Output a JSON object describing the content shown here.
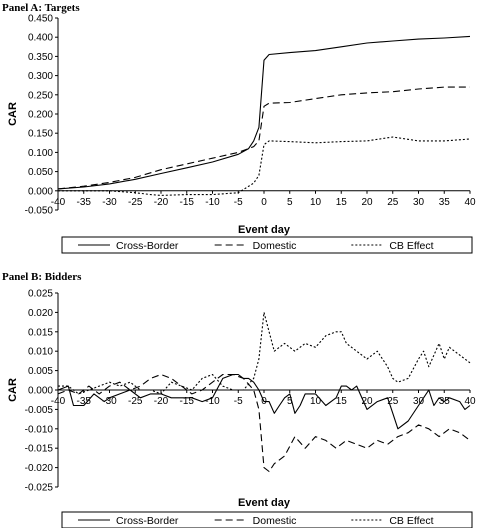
{
  "panels": {
    "a_title": "Panel A: Targets",
    "b_title": "Panel B: Bidders"
  },
  "chart_data": [
    {
      "type": "line",
      "title": "Panel A: Targets",
      "xlabel": "Event day",
      "ylabel": "CAR",
      "xlim": [
        -40,
        40
      ],
      "ylim": [
        -0.05,
        0.45
      ],
      "xticks": [
        "-40",
        "-35",
        "-30",
        "-25",
        "-20",
        "-15",
        "-10",
        "-5",
        "0",
        "5",
        "10",
        "15",
        "20",
        "25",
        "30",
        "35",
        "40"
      ],
      "yticks": [
        "0.450",
        "0.400",
        "0.350",
        "0.300",
        "0.250",
        "0.200",
        "0.150",
        "0.100",
        "0.050",
        "0.000",
        "-0.050"
      ],
      "grid": false,
      "legend_position": "bottom",
      "series": [
        {
          "name": "Cross-Border",
          "style": "solid",
          "x": [
            -40,
            -35,
            -30,
            -25,
            -20,
            -15,
            -10,
            -5,
            -3,
            -2,
            -1,
            0,
            1,
            5,
            10,
            15,
            20,
            25,
            30,
            35,
            40
          ],
          "values": [
            0.005,
            0.01,
            0.018,
            0.03,
            0.045,
            0.06,
            0.075,
            0.095,
            0.11,
            0.13,
            0.165,
            0.34,
            0.355,
            0.36,
            0.365,
            0.375,
            0.385,
            0.39,
            0.395,
            0.398,
            0.402
          ]
        },
        {
          "name": "Domestic",
          "style": "dashed",
          "x": [
            -40,
            -35,
            -30,
            -25,
            -20,
            -15,
            -10,
            -5,
            -2,
            -1,
            0,
            1,
            5,
            10,
            15,
            20,
            25,
            30,
            35,
            40
          ],
          "values": [
            0.005,
            0.012,
            0.022,
            0.035,
            0.055,
            0.07,
            0.085,
            0.1,
            0.115,
            0.13,
            0.22,
            0.228,
            0.23,
            0.24,
            0.25,
            0.255,
            0.258,
            0.265,
            0.27,
            0.27
          ]
        },
        {
          "name": "CB Effect",
          "style": "dotted",
          "x": [
            -40,
            -35,
            -30,
            -25,
            -22,
            -20,
            -15,
            -10,
            -5,
            -2,
            -1,
            0,
            1,
            5,
            10,
            15,
            20,
            25,
            30,
            35,
            40
          ],
          "values": [
            0.0,
            0.0,
            0.0,
            -0.005,
            -0.01,
            -0.012,
            -0.01,
            -0.01,
            -0.005,
            0.02,
            0.04,
            0.12,
            0.13,
            0.128,
            0.125,
            0.128,
            0.13,
            0.14,
            0.13,
            0.13,
            0.135
          ]
        }
      ]
    },
    {
      "type": "line",
      "title": "Panel B: Bidders",
      "xlabel": "Event day",
      "ylabel": "CAR",
      "xlim": [
        -40,
        40
      ],
      "ylim": [
        -0.025,
        0.025
      ],
      "xticks": [
        "-40",
        "-35",
        "-30",
        "-25",
        "-20",
        "-15",
        "-10",
        "-5",
        "0",
        "5",
        "10",
        "15",
        "20",
        "25",
        "30",
        "35",
        "40"
      ],
      "yticks": [
        "0.025",
        "0.020",
        "0.015",
        "0.010",
        "0.005",
        "0.000",
        "-0.005",
        "-0.010",
        "-0.015",
        "-0.020",
        "-0.025"
      ],
      "grid": false,
      "legend_position": "bottom",
      "series": [
        {
          "name": "Cross-Border",
          "style": "solid",
          "x": [
            -40,
            -38,
            -37,
            -35,
            -33,
            -31,
            -30,
            -28,
            -26,
            -24,
            -22,
            -20,
            -18,
            -16,
            -14,
            -12,
            -10,
            -8,
            -6,
            -5,
            -4,
            -3,
            -2,
            -1,
            0,
            1,
            2,
            3,
            4,
            5,
            6,
            7,
            8,
            10,
            12,
            14,
            15,
            16,
            17,
            18,
            20,
            22,
            24,
            25,
            26,
            28,
            30,
            31,
            32,
            33,
            34,
            35,
            36,
            38,
            39,
            40
          ],
          "values": [
            0.0,
            0.001,
            -0.004,
            -0.004,
            -0.001,
            -0.003,
            -0.002,
            -0.001,
            0.0,
            -0.002,
            -0.001,
            -0.001,
            -0.002,
            -0.002,
            -0.002,
            -0.003,
            -0.002,
            0.003,
            0.004,
            0.004,
            0.003,
            0.003,
            0.002,
            0.0,
            -0.003,
            -0.003,
            -0.006,
            -0.004,
            -0.002,
            -0.001,
            -0.006,
            -0.004,
            -0.001,
            -0.001,
            -0.004,
            -0.002,
            0.001,
            0.001,
            0.0,
            0.001,
            -0.005,
            -0.003,
            -0.002,
            -0.006,
            -0.01,
            -0.008,
            -0.004,
            -0.002,
            0.0,
            -0.004,
            -0.002,
            -0.003,
            -0.002,
            -0.003,
            -0.005,
            -0.004
          ]
        },
        {
          "name": "Domestic",
          "style": "dashed",
          "x": [
            -40,
            -38,
            -36,
            -34,
            -32,
            -30,
            -28,
            -26,
            -24,
            -22,
            -20,
            -18,
            -16,
            -14,
            -12,
            -10,
            -8,
            -6,
            -4,
            -2,
            -1,
            0,
            1,
            2,
            4,
            6,
            8,
            10,
            12,
            14,
            16,
            18,
            20,
            22,
            24,
            26,
            28,
            30,
            32,
            34,
            36,
            38,
            40
          ],
          "values": [
            -0.001,
            0.0,
            -0.001,
            0.001,
            -0.001,
            0.001,
            0.002,
            0.0,
            0.001,
            0.003,
            0.004,
            0.003,
            0.001,
            -0.001,
            0.0,
            0.002,
            0.004,
            0.004,
            0.003,
            0.0,
            -0.005,
            -0.02,
            -0.021,
            -0.019,
            -0.017,
            -0.012,
            -0.015,
            -0.012,
            -0.013,
            -0.015,
            -0.013,
            -0.014,
            -0.015,
            -0.013,
            -0.014,
            -0.012,
            -0.011,
            -0.009,
            -0.01,
            -0.012,
            -0.01,
            -0.011,
            -0.013
          ]
        },
        {
          "name": "CB Effect",
          "style": "dotted",
          "x": [
            -40,
            -38,
            -36,
            -34,
            -32,
            -30,
            -28,
            -26,
            -24,
            -22,
            -20,
            -18,
            -16,
            -14,
            -12,
            -10,
            -8,
            -6,
            -4,
            -2,
            -1,
            0,
            1,
            2,
            3,
            4,
            6,
            8,
            10,
            12,
            14,
            15,
            16,
            18,
            20,
            22,
            24,
            25,
            26,
            28,
            30,
            31,
            32,
            34,
            35,
            36,
            38,
            40
          ],
          "values": [
            0.001,
            0.001,
            -0.001,
            0.0,
            0.001,
            0.002,
            0.001,
            0.002,
            0.0,
            0.0,
            -0.001,
            0.002,
            0.001,
            0.0,
            0.003,
            0.004,
            0.001,
            0.0,
            0.0,
            0.003,
            0.008,
            0.02,
            0.015,
            0.01,
            0.011,
            0.012,
            0.01,
            0.012,
            0.011,
            0.014,
            0.015,
            0.015,
            0.012,
            0.01,
            0.008,
            0.01,
            0.006,
            0.003,
            0.002,
            0.003,
            0.008,
            0.01,
            0.006,
            0.012,
            0.008,
            0.011,
            0.009,
            0.007
          ]
        }
      ]
    }
  ]
}
